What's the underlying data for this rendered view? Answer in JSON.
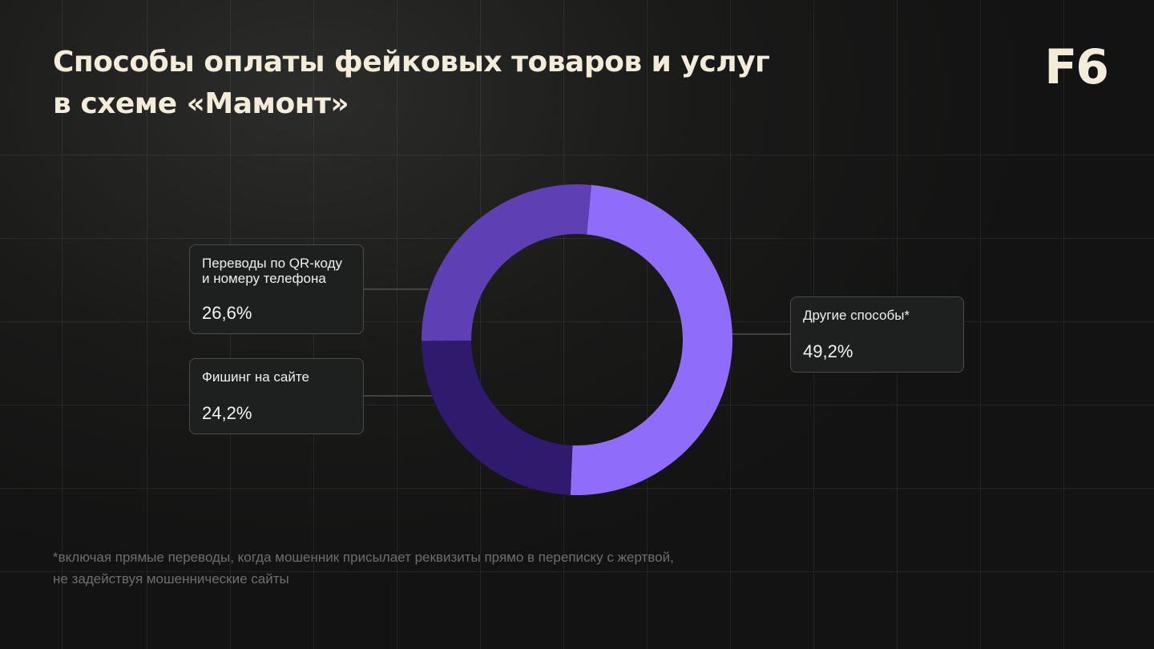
{
  "header": {
    "title_lines": [
      "Способы оплаты фейковых товаров и услуг",
      "в схеме «Мамонт»"
    ],
    "logo": "F6"
  },
  "colors": {
    "background": "#161616",
    "title": "#f3ecd9",
    "segment_other": "#906cfb",
    "segment_phishing": "#2f1a6e",
    "segment_qr": "#5f40b4"
  },
  "chart_data": {
    "type": "pie",
    "donut": true,
    "title": "Способы оплаты фейковых товаров и услуг в схеме «Мамонт»",
    "unit": "%",
    "slices": [
      {
        "label_lines": [
          "Другие способы*"
        ],
        "value": 49.2,
        "value_text": "49,2%",
        "color": "#906cfb"
      },
      {
        "label_lines": [
          "Фишинг на сайте"
        ],
        "value": 24.2,
        "value_text": "24,2%",
        "color": "#2f1a6e"
      },
      {
        "label_lines": [
          "Переводы по QR-коду",
          "и номеру телефона"
        ],
        "value": 26.6,
        "value_text": "26,6%",
        "color": "#5f40b4"
      }
    ]
  },
  "footnote_lines": [
    "*включая прямые переводы, когда мошенник присылает реквизиты прямо в переписку с жертвой,",
    "не задействуя мошеннические сайты"
  ]
}
